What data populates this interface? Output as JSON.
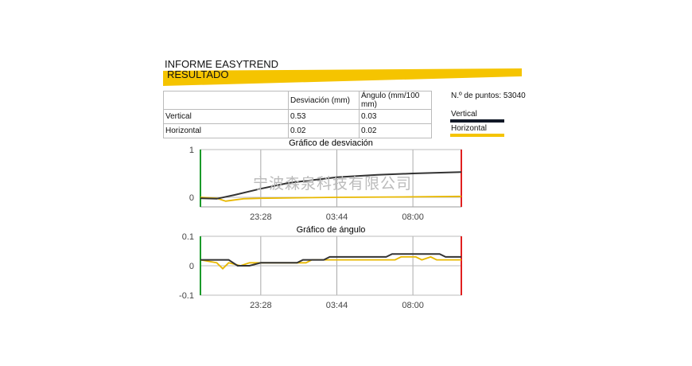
{
  "header": {
    "title": "INFORME EASYTREND",
    "section": "RESULTADO"
  },
  "table": {
    "headers": [
      "",
      "Desviación (mm)",
      "Ángulo (mm/100 mm)"
    ],
    "rows": [
      [
        "Vertical",
        "0.53",
        "0.03"
      ],
      [
        "Horizontal",
        "0.02",
        "0.02"
      ]
    ]
  },
  "points_label": "N.º de puntos: 53040",
  "legend": [
    {
      "name": "Vertical",
      "color": "#111827"
    },
    {
      "name": "Horizontal",
      "color": "#f5c400"
    }
  ],
  "watermark": "宁波森泉科技有限公司",
  "chart_data": [
    {
      "type": "line",
      "title": "Gráfico de desviación",
      "ylim": [
        -0.2,
        1
      ],
      "yticks": [
        "1",
        "0"
      ],
      "xticks": [
        "23:28",
        "03:44",
        "08:00"
      ],
      "grid": true,
      "series": [
        {
          "name": "Vertical",
          "color": "#333333",
          "points": [
            [
              "20:05",
              -0.02
            ],
            [
              "21:00",
              -0.03
            ],
            [
              "22:00",
              0.05
            ],
            [
              "23:28",
              0.18
            ],
            [
              "01:00",
              0.3
            ],
            [
              "03:44",
              0.42
            ],
            [
              "06:00",
              0.47
            ],
            [
              "08:00",
              0.5
            ],
            [
              "10:43",
              0.53
            ]
          ]
        },
        {
          "name": "Horizontal",
          "color": "#e8b800",
          "points": [
            [
              "20:05",
              0.0
            ],
            [
              "21:00",
              -0.02
            ],
            [
              "21:30",
              -0.08
            ],
            [
              "22:30",
              -0.03
            ],
            [
              "23:28",
              -0.02
            ],
            [
              "03:44",
              0.0
            ],
            [
              "08:00",
              0.01
            ],
            [
              "10:43",
              0.02
            ]
          ]
        }
      ]
    },
    {
      "type": "line",
      "title": "Gráfico de ángulo",
      "ylim": [
        -0.1,
        0.1
      ],
      "yticks": [
        "0.1",
        "0",
        "-0.1"
      ],
      "xticks": [
        "23:28",
        "03:44",
        "08:00"
      ],
      "grid": true,
      "series": [
        {
          "name": "Vertical",
          "color": "#333333",
          "points": [
            [
              "20:05",
              0.02
            ],
            [
              "21:40",
              0.02
            ],
            [
              "22:10",
              0.0
            ],
            [
              "22:50",
              0.0
            ],
            [
              "23:28",
              0.01
            ],
            [
              "01:30",
              0.01
            ],
            [
              "01:50",
              0.02
            ],
            [
              "03:00",
              0.02
            ],
            [
              "03:20",
              0.03
            ],
            [
              "06:30",
              0.03
            ],
            [
              "06:50",
              0.04
            ],
            [
              "09:30",
              0.04
            ],
            [
              "09:50",
              0.03
            ],
            [
              "10:43",
              0.03
            ]
          ]
        },
        {
          "name": "Horizontal",
          "color": "#e8b800",
          "points": [
            [
              "20:05",
              0.02
            ],
            [
              "21:00",
              0.01
            ],
            [
              "21:20",
              -0.01
            ],
            [
              "21:40",
              0.01
            ],
            [
              "22:20",
              0.0
            ],
            [
              "22:50",
              0.01
            ],
            [
              "23:28",
              0.01
            ],
            [
              "02:00",
              0.01
            ],
            [
              "02:20",
              0.02
            ],
            [
              "07:00",
              0.02
            ],
            [
              "07:20",
              0.03
            ],
            [
              "08:10",
              0.03
            ],
            [
              "08:30",
              0.02
            ],
            [
              "09:00",
              0.03
            ],
            [
              "09:20",
              0.02
            ],
            [
              "10:43",
              0.02
            ]
          ]
        }
      ]
    }
  ]
}
